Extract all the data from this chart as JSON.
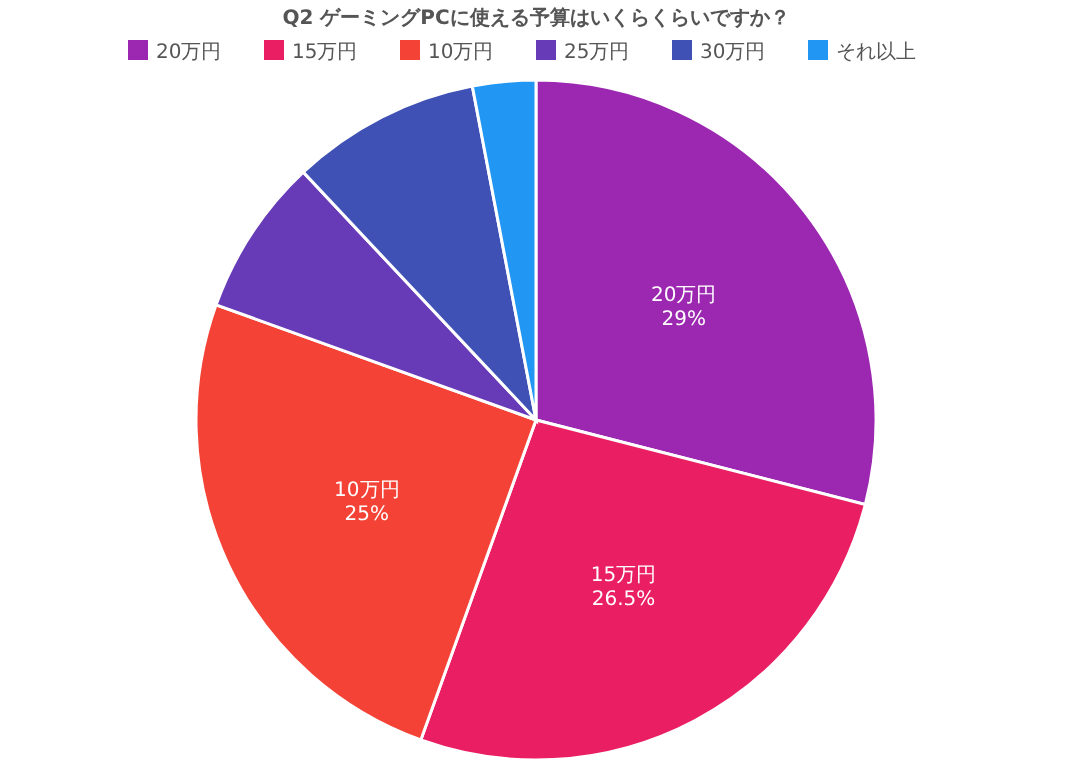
{
  "chart_data": {
    "type": "pie",
    "title": "Q2 ゲーミングPCに使える予算はいくらくらいですか？",
    "categories": [
      "20万円",
      "15万円",
      "10万円",
      "25万円",
      "30万円",
      "それ以上"
    ],
    "values": [
      29,
      26.5,
      25,
      7.5,
      9,
      3
    ],
    "colors": [
      "#9c27b0",
      "#e91e63",
      "#f44336",
      "#673ab7",
      "#3f51b5",
      "#2196f3"
    ],
    "value_labels": [
      "29%",
      "26.5%",
      "25%",
      null,
      null,
      null
    ],
    "legend": "top"
  }
}
